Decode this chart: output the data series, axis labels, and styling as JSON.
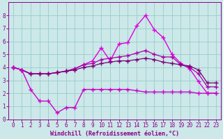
{
  "x": [
    0,
    1,
    2,
    3,
    4,
    5,
    6,
    7,
    8,
    9,
    10,
    11,
    12,
    13,
    14,
    15,
    16,
    17,
    18,
    19,
    20,
    21,
    22,
    23
  ],
  "line1_bright": [
    4.0,
    3.8,
    3.5,
    3.5,
    3.5,
    3.6,
    3.7,
    3.9,
    4.2,
    4.5,
    5.5,
    4.5,
    5.8,
    5.9,
    7.2,
    8.0,
    6.9,
    6.3,
    5.0,
    4.3,
    3.9,
    2.9,
    2.0,
    2.0
  ],
  "line2_mid": [
    4.0,
    3.8,
    3.5,
    3.5,
    3.5,
    3.6,
    3.7,
    3.9,
    4.2,
    4.3,
    4.6,
    4.7,
    4.8,
    4.9,
    5.1,
    5.3,
    5.0,
    4.8,
    4.8,
    4.2,
    4.0,
    3.5,
    2.5,
    2.5
  ],
  "line3_dark": [
    4.0,
    3.8,
    3.5,
    3.5,
    3.5,
    3.6,
    3.7,
    3.8,
    4.0,
    4.1,
    4.3,
    4.4,
    4.5,
    4.5,
    4.6,
    4.7,
    4.6,
    4.4,
    4.3,
    4.2,
    4.1,
    3.8,
    2.8,
    2.8
  ],
  "line4_low": [
    4.0,
    3.8,
    2.3,
    1.4,
    1.4,
    0.5,
    0.9,
    0.9,
    2.3,
    2.3,
    2.3,
    2.3,
    2.3,
    2.3,
    2.2,
    2.1,
    2.1,
    2.1,
    2.1,
    2.1,
    2.1,
    2.0,
    2.0,
    2.0
  ],
  "color_bright": "#dd00dd",
  "color_mid": "#aa00aa",
  "color_dark": "#770077",
  "color_low": "#cc00cc",
  "bg_color": "#cce8e8",
  "grid_color": "#99cccc",
  "tick_color": "#880088",
  "xlabel": "Windchill (Refroidissement éolien,°C)",
  "ylim": [
    0,
    9
  ],
  "xlim": [
    -0.5,
    23.5
  ],
  "yticks": [
    0,
    1,
    2,
    3,
    4,
    5,
    6,
    7,
    8
  ],
  "xticks": [
    0,
    1,
    2,
    3,
    4,
    5,
    6,
    7,
    8,
    9,
    10,
    11,
    12,
    13,
    14,
    15,
    16,
    17,
    18,
    19,
    20,
    21,
    22,
    23
  ]
}
